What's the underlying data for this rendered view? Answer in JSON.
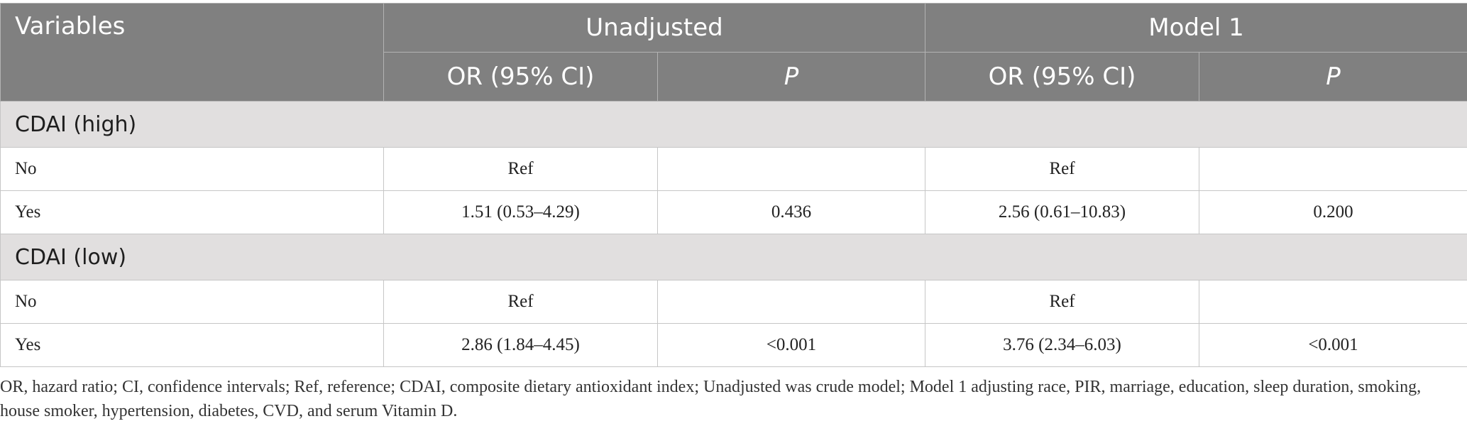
{
  "table": {
    "header": {
      "variables": "Variables",
      "groups": [
        "Unadjusted",
        "Model 1"
      ],
      "sub": [
        "OR (95% CI)",
        "P",
        "OR (95% CI)",
        "P"
      ]
    },
    "sections": [
      {
        "title": "CDAI (high)",
        "rows": [
          {
            "label": "No",
            "cells": [
              "Ref",
              "",
              "Ref",
              ""
            ]
          },
          {
            "label": "Yes",
            "cells": [
              "1.51 (0.53–4.29)",
              "0.436",
              "2.56 (0.61–10.83)",
              "0.200"
            ]
          }
        ]
      },
      {
        "title": "CDAI (low)",
        "rows": [
          {
            "label": "No",
            "cells": [
              "Ref",
              "",
              "Ref",
              ""
            ]
          },
          {
            "label": "Yes",
            "cells": [
              "2.86 (1.84–4.45)",
              "<0.001",
              "3.76 (2.34–6.03)",
              "<0.001"
            ]
          }
        ]
      }
    ]
  },
  "footnote": "OR, hazard ratio; CI, confidence intervals; Ref, reference; CDAI, composite dietary antioxidant index; Unadjusted was crude model; Model 1 adjusting race, PIR, marriage, education, sleep duration, smoking, house smoker, hypertension, diabetes, CVD, and serum Vitamin D."
}
